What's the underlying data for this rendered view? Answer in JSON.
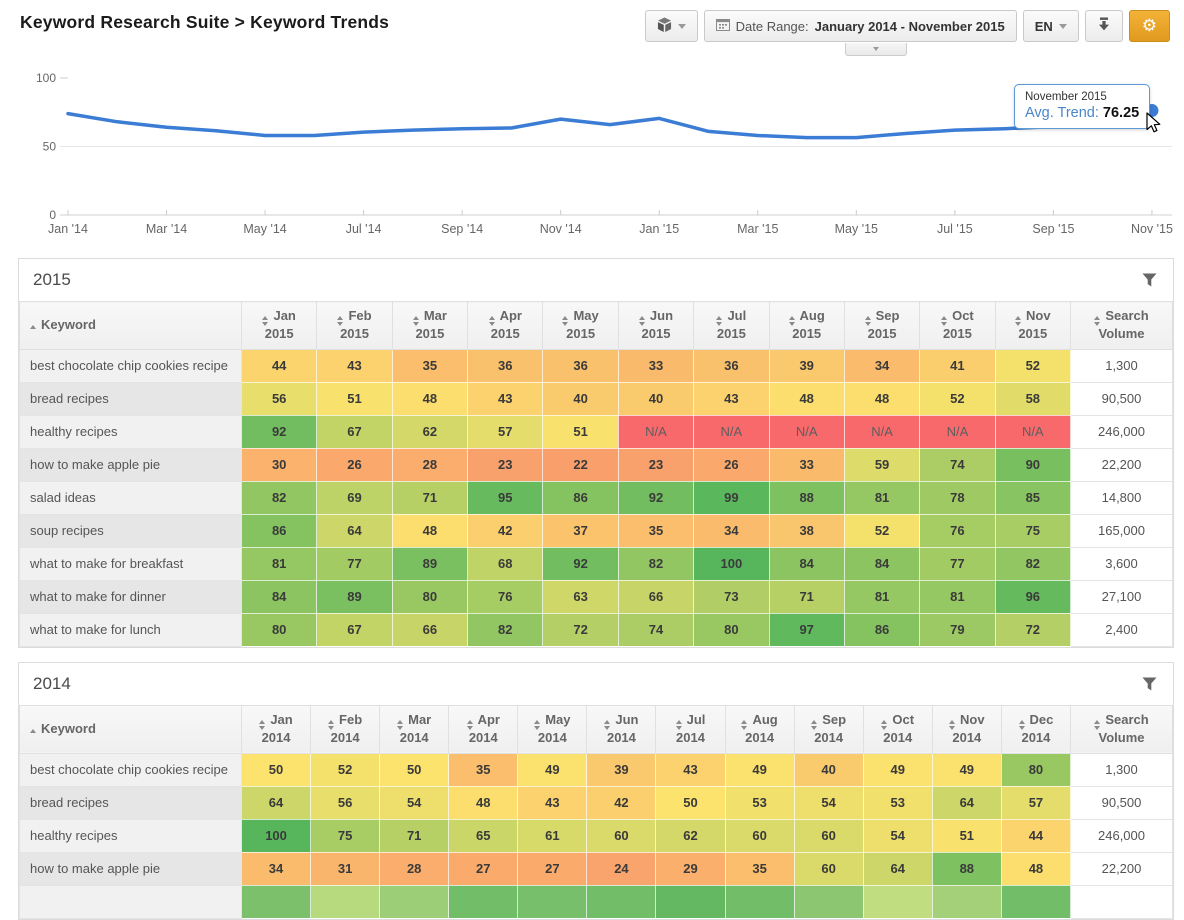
{
  "header": {
    "title": "Keyword Research Suite > Keyword Trends",
    "toolbar": {
      "date_range_label": "Date Range:",
      "date_range_value": "January 2014 - November 2015",
      "language": "EN"
    }
  },
  "icons": {
    "apps": "cube-icon",
    "date": "calendar-icon",
    "dropdown": "chevron-down-icon",
    "download": "download-icon",
    "settings": "gear-icon",
    "filter": "filter-icon",
    "sort": "sort-icon",
    "sort_asc": "sort-ascending-icon"
  },
  "colors": {
    "accent_orange": "#e8a32a",
    "line_blue": "#3b7cd5",
    "tooltip_border": "#5b9bd5",
    "na_bg": "#f8696b",
    "heat_scale": {
      "min": "#f8696b",
      "mid": "#fbe36d",
      "max": "#57b65c",
      "mid_value": 50
    }
  },
  "chart_data": {
    "type": "line",
    "title": "Avg. Trend by month",
    "x": [
      "Jan 2014",
      "Feb 2014",
      "Mar 2014",
      "Apr 2014",
      "May 2014",
      "Jun 2014",
      "Jul 2014",
      "Aug 2014",
      "Sep 2014",
      "Oct 2014",
      "Nov 2014",
      "Dec 2014",
      "Jan 2015",
      "Feb 2015",
      "Mar 2015",
      "Apr 2015",
      "May 2015",
      "Jun 2015",
      "Jul 2015",
      "Aug 2015",
      "Sep 2015",
      "Oct 2015",
      "Nov 2015"
    ],
    "values": [
      74,
      68,
      64,
      61.5,
      58,
      58,
      60.5,
      62,
      63,
      63.5,
      70,
      66,
      70.5,
      61,
      58,
      56.5,
      56.5,
      59.5,
      62,
      63,
      64.5,
      68,
      76.25
    ],
    "x_tick_labels": [
      "Jan '14",
      "Mar '14",
      "May '14",
      "Jul '14",
      "Sep '14",
      "Nov '14",
      "Jan '15",
      "Mar '15",
      "May '15",
      "Jul '15",
      "Sep '15",
      "Nov '15"
    ],
    "y_ticks": [
      0,
      50,
      100
    ],
    "ylim": [
      0,
      100
    ],
    "grid": "horizontal line at 50, baseline at 0, legend off",
    "line_color": "#3b7cd5",
    "tooltip": {
      "title": "November 2015",
      "label": "Avg. Trend:",
      "value": "76.25"
    }
  },
  "tables": [
    {
      "year": "2015",
      "keyword_header": "Keyword",
      "search_volume_header": "Search Volume",
      "month_columns": [
        "Jan 2015",
        "Feb 2015",
        "Mar 2015",
        "Apr 2015",
        "May 2015",
        "Jun 2015",
        "Jul 2015",
        "Aug 2015",
        "Sep 2015",
        "Oct 2015",
        "Nov 2015"
      ],
      "rows": [
        {
          "keyword": "best chocolate chip cookies recipe",
          "values": [
            44,
            43,
            35,
            36,
            36,
            33,
            36,
            39,
            34,
            41,
            52
          ],
          "search_volume": "1,300"
        },
        {
          "keyword": "bread recipes",
          "values": [
            56,
            51,
            48,
            43,
            40,
            40,
            43,
            48,
            48,
            52,
            58
          ],
          "search_volume": "90,500"
        },
        {
          "keyword": "healthy recipes",
          "values": [
            92,
            67,
            62,
            57,
            51,
            "N/A",
            "N/A",
            "N/A",
            "N/A",
            "N/A",
            "N/A"
          ],
          "search_volume": "246,000"
        },
        {
          "keyword": "how to make apple pie",
          "values": [
            30,
            26,
            28,
            23,
            22,
            23,
            26,
            33,
            59,
            74,
            90
          ],
          "search_volume": "22,200"
        },
        {
          "keyword": "salad ideas",
          "values": [
            82,
            69,
            71,
            95,
            86,
            92,
            99,
            88,
            81,
            78,
            85
          ],
          "search_volume": "14,800"
        },
        {
          "keyword": "soup recipes",
          "values": [
            86,
            64,
            48,
            42,
            37,
            35,
            34,
            38,
            52,
            76,
            75
          ],
          "search_volume": "165,000"
        },
        {
          "keyword": "what to make for breakfast",
          "values": [
            81,
            77,
            89,
            68,
            92,
            82,
            100,
            84,
            84,
            77,
            82
          ],
          "search_volume": "3,600"
        },
        {
          "keyword": "what to make for dinner",
          "values": [
            84,
            89,
            80,
            76,
            63,
            66,
            73,
            71,
            81,
            81,
            96
          ],
          "search_volume": "27,100"
        },
        {
          "keyword": "what to make for lunch",
          "values": [
            80,
            67,
            66,
            82,
            72,
            74,
            80,
            97,
            86,
            79,
            72
          ],
          "search_volume": "2,400"
        }
      ]
    },
    {
      "year": "2014",
      "keyword_header": "Keyword",
      "search_volume_header": "Search Volume",
      "month_columns": [
        "Jan 2014",
        "Feb 2014",
        "Mar 2014",
        "Apr 2014",
        "May 2014",
        "Jun 2014",
        "Jul 2014",
        "Aug 2014",
        "Sep 2014",
        "Oct 2014",
        "Nov 2014",
        "Dec 2014"
      ],
      "rows": [
        {
          "keyword": "best chocolate chip cookies recipe",
          "values": [
            50,
            52,
            50,
            35,
            49,
            39,
            43,
            49,
            40,
            49,
            49,
            80
          ],
          "search_volume": "1,300"
        },
        {
          "keyword": "bread recipes",
          "values": [
            64,
            56,
            54,
            48,
            43,
            42,
            50,
            53,
            54,
            53,
            64,
            57
          ],
          "search_volume": "90,500"
        },
        {
          "keyword": "healthy recipes",
          "values": [
            100,
            75,
            71,
            65,
            61,
            60,
            62,
            60,
            60,
            54,
            51,
            44
          ],
          "search_volume": "246,000"
        },
        {
          "keyword": "how to make apple pie",
          "values": [
            34,
            31,
            28,
            27,
            27,
            24,
            29,
            35,
            60,
            64,
            88,
            48
          ],
          "search_volume": "22,200"
        }
      ],
      "partial_row_cell_colors": [
        "#7dc06c",
        "#b8da7e",
        "#9ccd77",
        "#72bd68",
        "#77bf6a",
        "#72bd68",
        "#65b862",
        "#72bd68",
        "#8cc671",
        "#c0dd80",
        "#a3d079",
        "#72bd68"
      ]
    }
  ]
}
